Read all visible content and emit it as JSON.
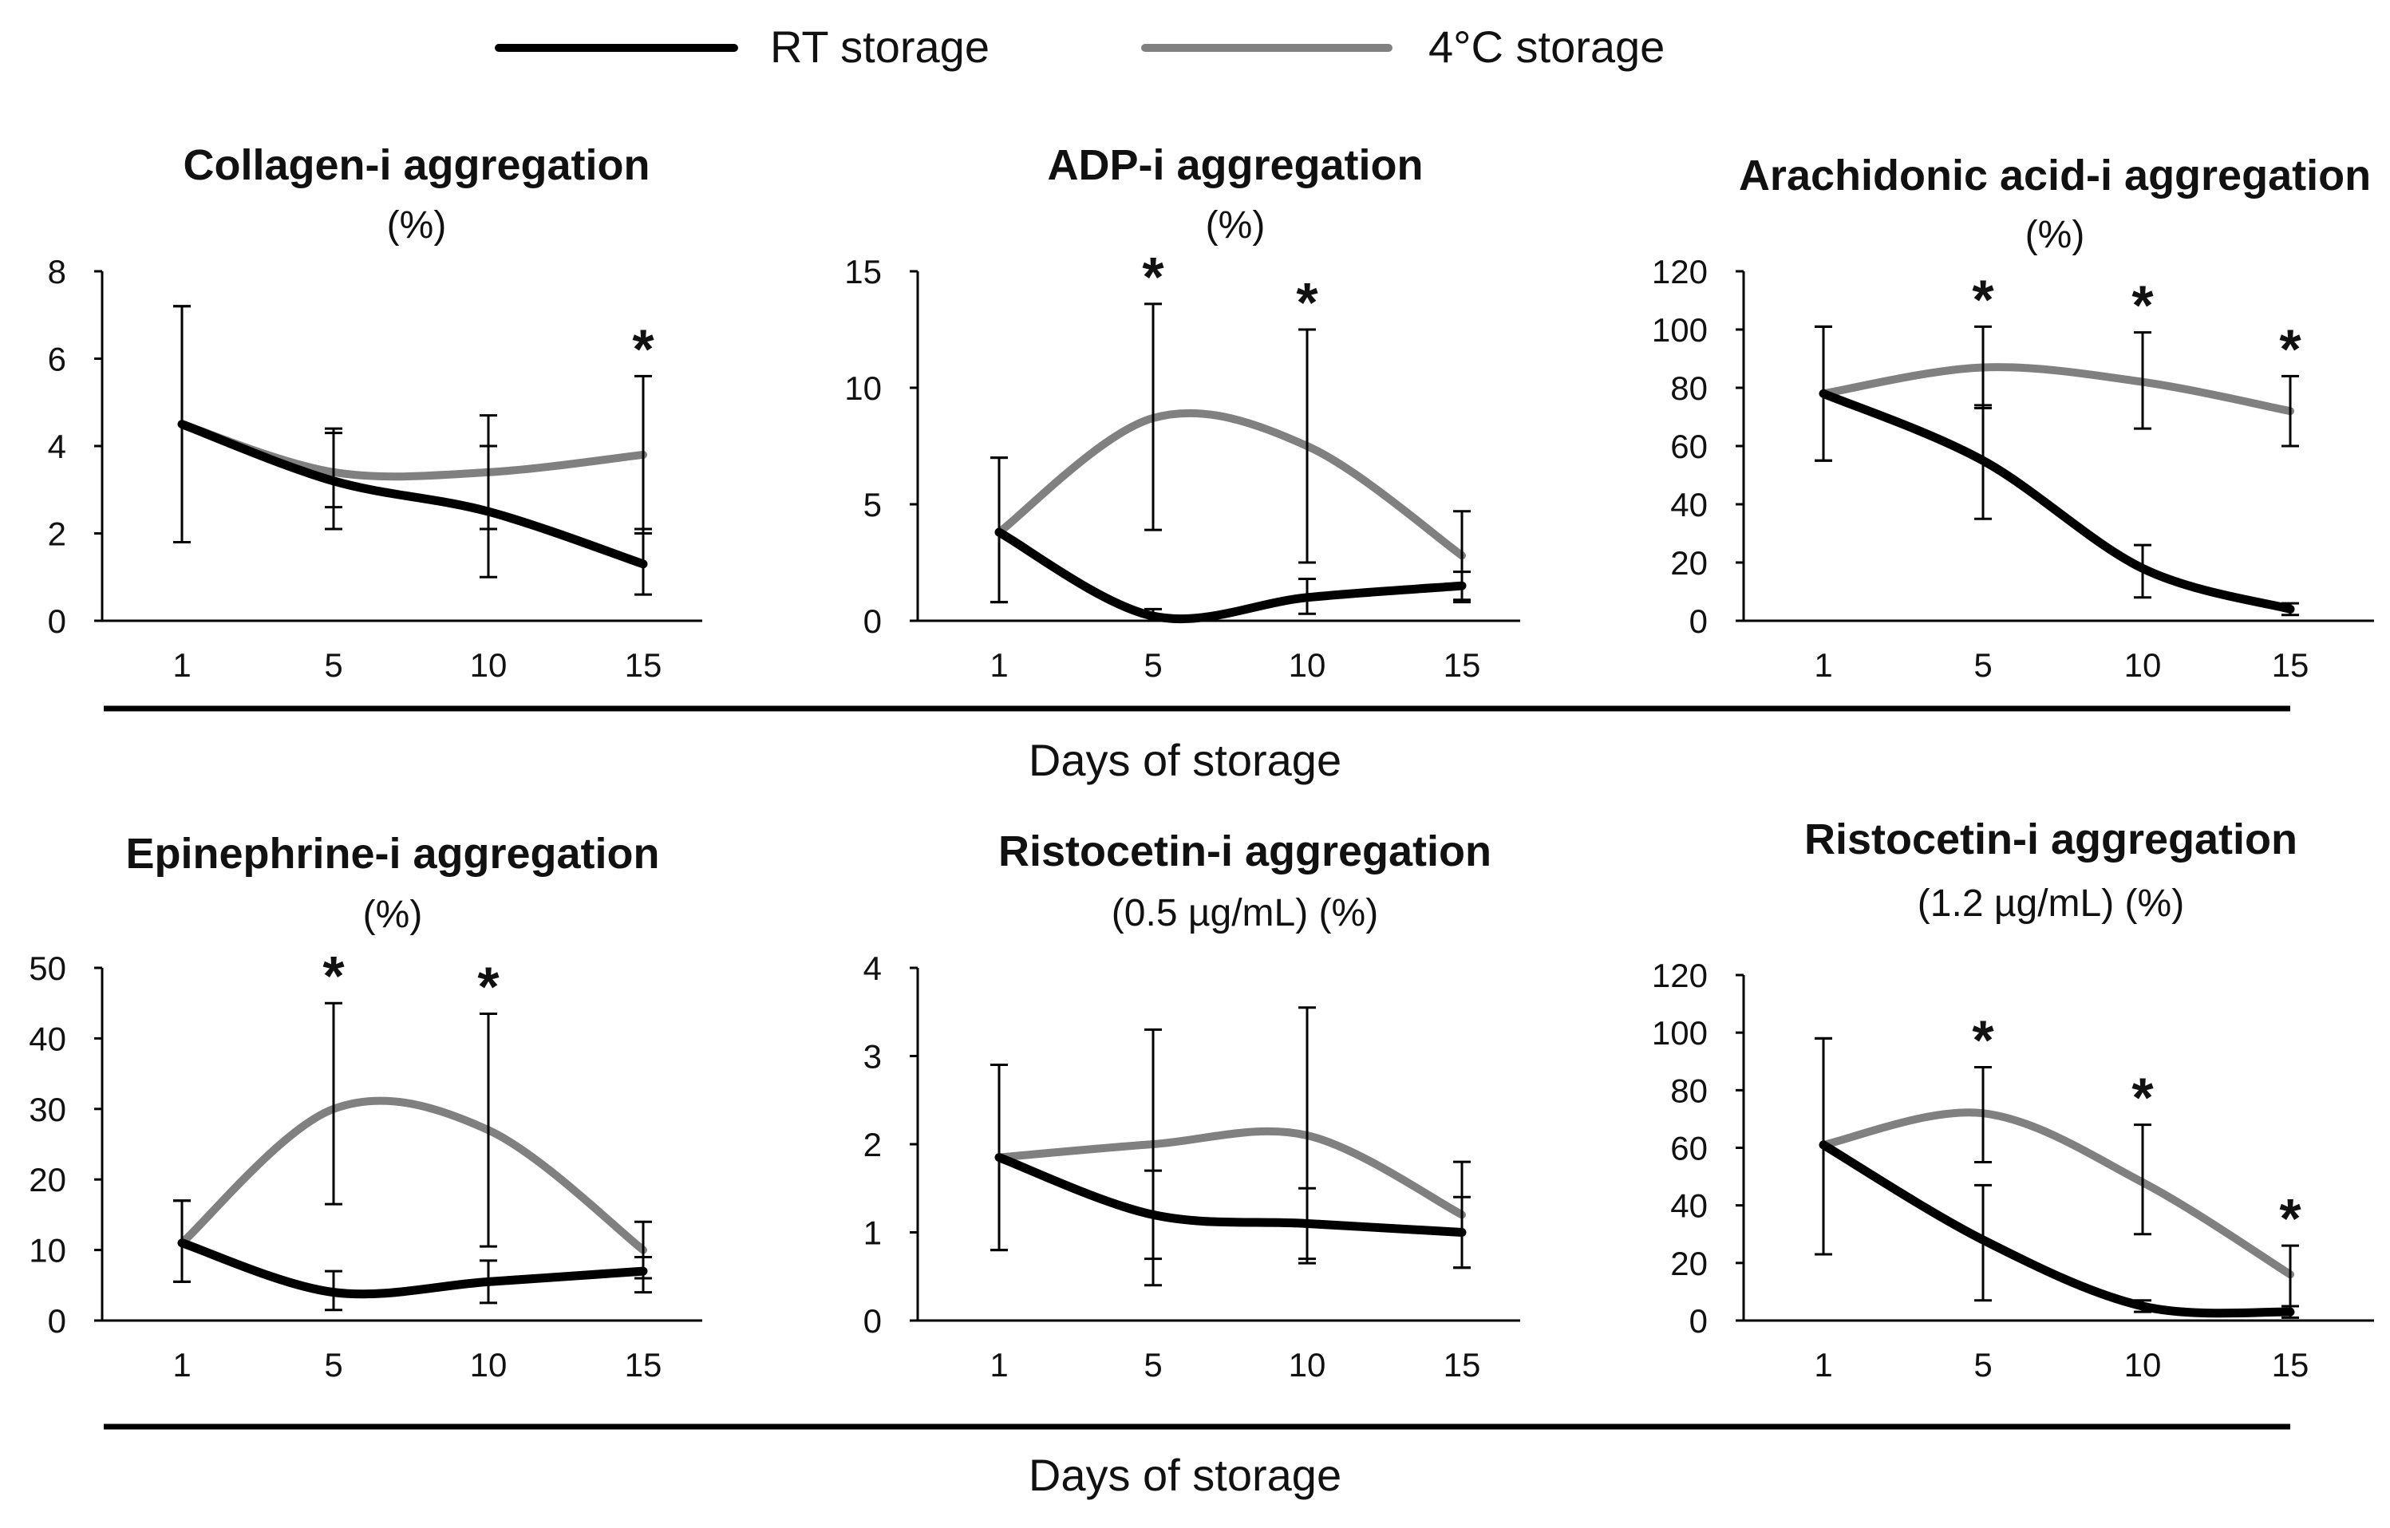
{
  "legend": [
    {
      "name": "RT storage",
      "color": "#000000"
    },
    {
      "name": "4°C storage",
      "color": "#808080"
    }
  ],
  "x_axis_title": "Days of storage",
  "chart_data": [
    {
      "type": "line",
      "title": "Collagen-i aggregation",
      "subtitle": "(%)",
      "x": [
        1,
        5,
        10,
        15
      ],
      "categories": [
        "1",
        "5",
        "10",
        "15"
      ],
      "xlabel": "Days of storage",
      "ylim": [
        0,
        8
      ],
      "yticks": [
        0,
        2,
        4,
        6,
        8
      ],
      "series": [
        {
          "name": "RT storage",
          "values": [
            4.5,
            3.2,
            2.5,
            1.3
          ],
          "err_low": [
            1.8,
            2.6,
            1.0,
            0.6
          ],
          "err_high": [
            7.2,
            4.4,
            4.0,
            2.1
          ]
        },
        {
          "name": "4°C storage",
          "values": [
            4.5,
            3.4,
            3.4,
            3.8
          ],
          "err_low": [
            1.8,
            2.1,
            2.1,
            2.0
          ],
          "err_high": [
            7.2,
            4.3,
            4.7,
            5.6
          ]
        }
      ],
      "significant": [
        false,
        false,
        false,
        true
      ]
    },
    {
      "type": "line",
      "title": "ADP-i aggregation",
      "subtitle": "(%)",
      "x": [
        1,
        5,
        10,
        15
      ],
      "categories": [
        "1",
        "5",
        "10",
        "15"
      ],
      "xlabel": "Days of storage",
      "ylim": [
        0,
        15
      ],
      "yticks": [
        0,
        5,
        10,
        15
      ],
      "series": [
        {
          "name": "RT storage",
          "values": [
            3.8,
            0.2,
            1.0,
            1.5
          ],
          "err_low": [
            0.8,
            0.0,
            0.3,
            0.8
          ],
          "err_high": [
            7.0,
            0.5,
            1.8,
            2.1
          ]
        },
        {
          "name": "4°C storage",
          "values": [
            3.8,
            8.7,
            7.5,
            2.8
          ],
          "err_low": [
            0.8,
            3.9,
            2.5,
            0.9
          ],
          "err_high": [
            7.0,
            13.6,
            12.5,
            4.7
          ]
        }
      ],
      "significant": [
        false,
        true,
        true,
        false
      ]
    },
    {
      "type": "line",
      "title": "Arachidonic acid-i aggregation",
      "subtitle": "(%)",
      "x": [
        1,
        5,
        10,
        15
      ],
      "categories": [
        "1",
        "5",
        "10",
        "15"
      ],
      "xlabel": "Days of storage",
      "ylim": [
        0,
        120
      ],
      "yticks": [
        0,
        20,
        40,
        60,
        80,
        100,
        120
      ],
      "series": [
        {
          "name": "RT storage",
          "values": [
            78,
            55,
            18,
            4
          ],
          "err_low": [
            55,
            35,
            8,
            2
          ],
          "err_high": [
            101,
            74,
            26,
            6
          ]
        },
        {
          "name": "4°C storage",
          "values": [
            78,
            87,
            82,
            72
          ],
          "err_low": [
            55,
            73,
            66,
            60
          ],
          "err_high": [
            101,
            101,
            99,
            84
          ]
        }
      ],
      "significant": [
        false,
        true,
        true,
        true
      ]
    },
    {
      "type": "line",
      "title": "Epinephrine-i aggregation",
      "subtitle": "(%)",
      "x": [
        1,
        5,
        10,
        15
      ],
      "categories": [
        "1",
        "5",
        "10",
        "15"
      ],
      "xlabel": "Days of storage",
      "ylim": [
        0,
        50
      ],
      "yticks": [
        0,
        10,
        20,
        30,
        40,
        50
      ],
      "series": [
        {
          "name": "RT storage",
          "values": [
            11,
            4,
            5.5,
            7
          ],
          "err_low": [
            5.5,
            1.5,
            2.5,
            4
          ],
          "err_high": [
            17,
            7,
            8.5,
            9
          ]
        },
        {
          "name": "4°C storage",
          "values": [
            11,
            30,
            27,
            10
          ],
          "err_low": [
            5.5,
            16.5,
            10.5,
            6
          ],
          "err_high": [
            17,
            45,
            43.5,
            14
          ]
        }
      ],
      "significant": [
        false,
        true,
        true,
        false
      ]
    },
    {
      "type": "line",
      "title": "Ristocetin-i aggregation",
      "subtitle": "(0.5 µg/mL) (%)",
      "x": [
        1,
        5,
        10,
        15
      ],
      "categories": [
        "1",
        "5",
        "10",
        "15"
      ],
      "xlabel": "Days of storage",
      "ylim": [
        0,
        4
      ],
      "yticks": [
        0,
        1,
        2,
        3,
        4
      ],
      "series": [
        {
          "name": "RT storage",
          "values": [
            1.85,
            1.2,
            1.1,
            1.0
          ],
          "err_low": [
            0.8,
            0.7,
            0.65,
            0.6
          ],
          "err_high": [
            2.9,
            1.7,
            1.5,
            1.4
          ]
        },
        {
          "name": "4°C storage",
          "values": [
            1.85,
            2.0,
            2.1,
            1.2
          ],
          "err_low": [
            0.8,
            0.4,
            0.7,
            0.6
          ],
          "err_high": [
            2.9,
            3.3,
            3.55,
            1.8
          ]
        }
      ],
      "significant": [
        false,
        false,
        false,
        false
      ]
    },
    {
      "type": "line",
      "title": "Ristocetin-i aggregation",
      "subtitle": "(1.2 µg/mL) (%)",
      "x": [
        1,
        5,
        10,
        15
      ],
      "categories": [
        "1",
        "5",
        "10",
        "15"
      ],
      "xlabel": "Days of storage",
      "ylim": [
        0,
        120
      ],
      "yticks": [
        0,
        20,
        40,
        60,
        80,
        100,
        120
      ],
      "series": [
        {
          "name": "RT storage",
          "values": [
            61,
            28,
            5,
            3
          ],
          "err_low": [
            23,
            7,
            3,
            1
          ],
          "err_high": [
            98,
            47,
            7,
            5
          ]
        },
        {
          "name": "4°C storage",
          "values": [
            61,
            72,
            48,
            16
          ],
          "err_low": [
            23,
            55,
            30,
            5
          ],
          "err_high": [
            98,
            88,
            68,
            26
          ]
        }
      ],
      "significant": [
        false,
        true,
        true,
        true
      ]
    }
  ]
}
